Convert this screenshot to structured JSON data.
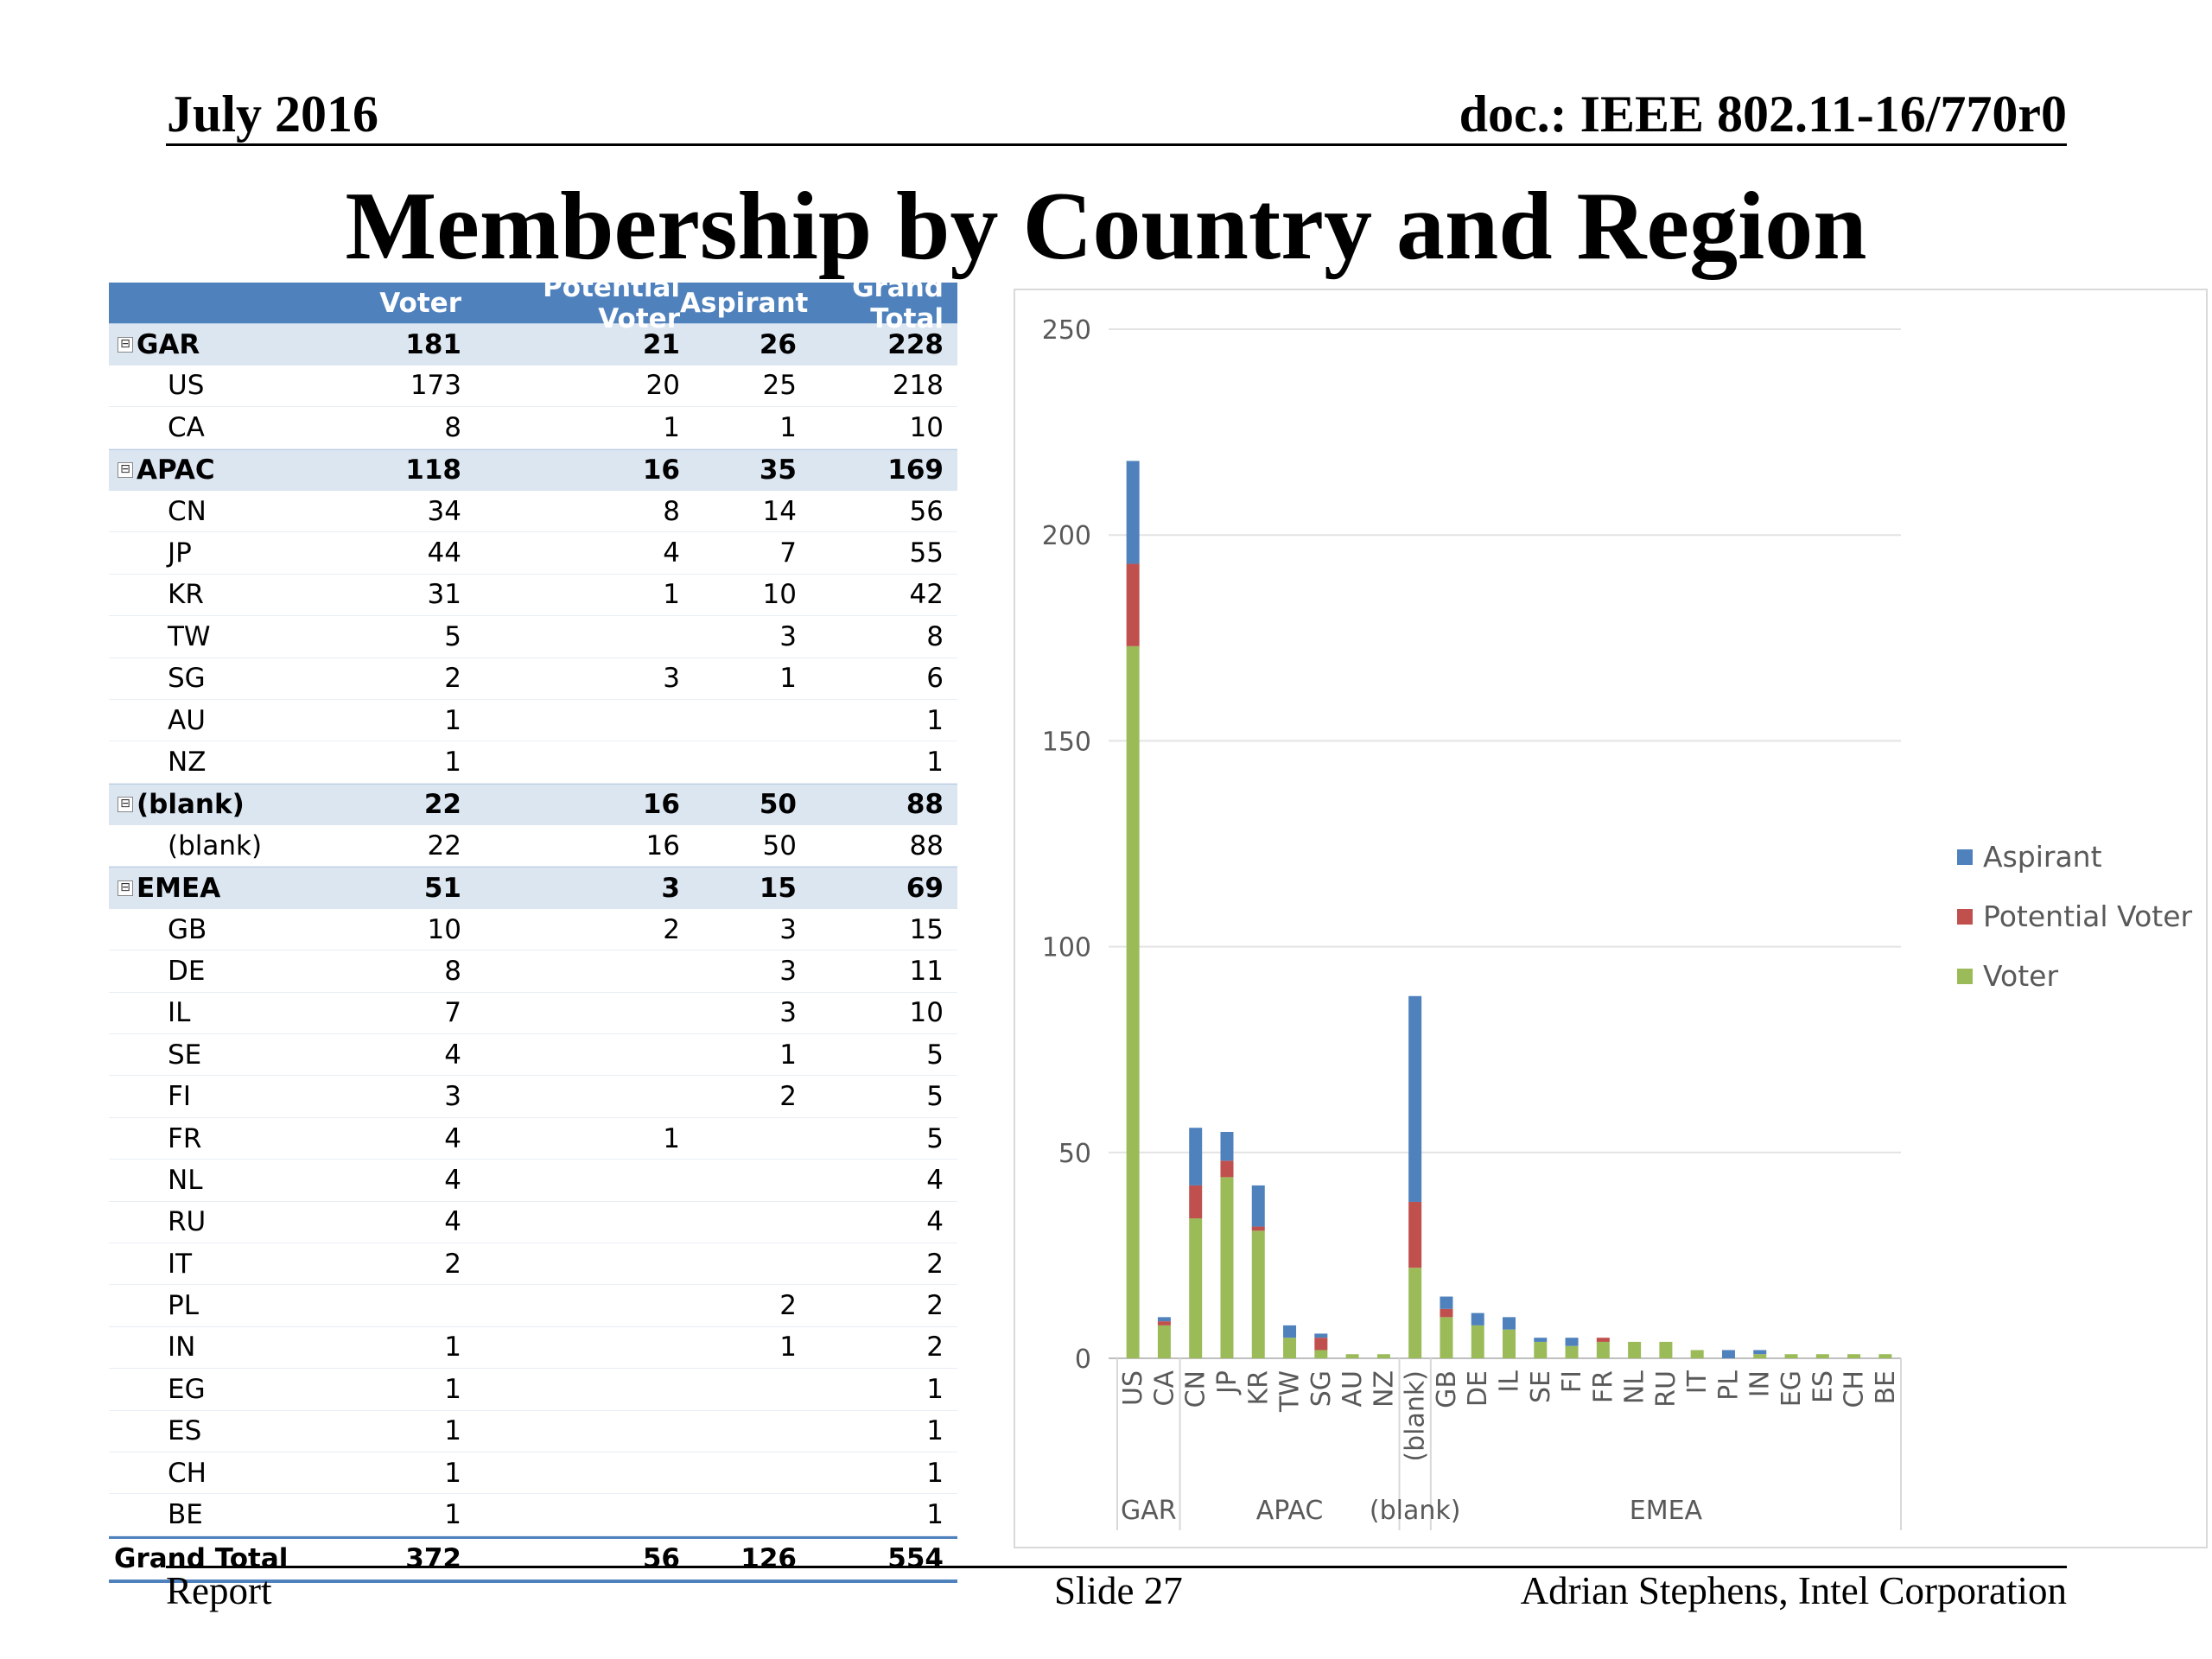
{
  "header": {
    "date": "July 2016",
    "doc": "doc.: IEEE 802.11-16/770r0"
  },
  "title": "Membership by Country and Region",
  "footer": {
    "left": "Report",
    "center": "Slide 27",
    "right": "Adrian Stephens, Intel Corporation"
  },
  "colors": {
    "voter": "#9bbb59",
    "potential_voter": "#c0504d",
    "aspirant": "#4f81bd",
    "table_header": "#4f81bd",
    "region_row": "#dce6f1"
  },
  "table": {
    "toggle_symbol": "⊟",
    "columns": [
      "",
      "Voter",
      "Potential Voter",
      "Aspirant",
      "Grand Total"
    ],
    "rows": [
      {
        "kind": "region",
        "label": "GAR",
        "voter": "181",
        "potential": "21",
        "aspirant": "26",
        "total": "228"
      },
      {
        "kind": "country",
        "label": "US",
        "voter": "173",
        "potential": "20",
        "aspirant": "25",
        "total": "218"
      },
      {
        "kind": "country",
        "label": "CA",
        "voter": "8",
        "potential": "1",
        "aspirant": "1",
        "total": "10"
      },
      {
        "kind": "region",
        "label": "APAC",
        "voter": "118",
        "potential": "16",
        "aspirant": "35",
        "total": "169"
      },
      {
        "kind": "country",
        "label": "CN",
        "voter": "34",
        "potential": "8",
        "aspirant": "14",
        "total": "56"
      },
      {
        "kind": "country",
        "label": "JP",
        "voter": "44",
        "potential": "4",
        "aspirant": "7",
        "total": "55"
      },
      {
        "kind": "country",
        "label": "KR",
        "voter": "31",
        "potential": "1",
        "aspirant": "10",
        "total": "42"
      },
      {
        "kind": "country",
        "label": "TW",
        "voter": "5",
        "potential": "",
        "aspirant": "3",
        "total": "8"
      },
      {
        "kind": "country",
        "label": "SG",
        "voter": "2",
        "potential": "3",
        "aspirant": "1",
        "total": "6"
      },
      {
        "kind": "country",
        "label": "AU",
        "voter": "1",
        "potential": "",
        "aspirant": "",
        "total": "1"
      },
      {
        "kind": "country",
        "label": "NZ",
        "voter": "1",
        "potential": "",
        "aspirant": "",
        "total": "1"
      },
      {
        "kind": "region",
        "label": "(blank)",
        "voter": "22",
        "potential": "16",
        "aspirant": "50",
        "total": "88"
      },
      {
        "kind": "country",
        "label": "(blank)",
        "voter": "22",
        "potential": "16",
        "aspirant": "50",
        "total": "88"
      },
      {
        "kind": "region",
        "label": "EMEA",
        "voter": "51",
        "potential": "3",
        "aspirant": "15",
        "total": "69"
      },
      {
        "kind": "country",
        "label": "GB",
        "voter": "10",
        "potential": "2",
        "aspirant": "3",
        "total": "15"
      },
      {
        "kind": "country",
        "label": "DE",
        "voter": "8",
        "potential": "",
        "aspirant": "3",
        "total": "11"
      },
      {
        "kind": "country",
        "label": "IL",
        "voter": "7",
        "potential": "",
        "aspirant": "3",
        "total": "10"
      },
      {
        "kind": "country",
        "label": "SE",
        "voter": "4",
        "potential": "",
        "aspirant": "1",
        "total": "5"
      },
      {
        "kind": "country",
        "label": "FI",
        "voter": "3",
        "potential": "",
        "aspirant": "2",
        "total": "5"
      },
      {
        "kind": "country",
        "label": "FR",
        "voter": "4",
        "potential": "1",
        "aspirant": "",
        "total": "5"
      },
      {
        "kind": "country",
        "label": "NL",
        "voter": "4",
        "potential": "",
        "aspirant": "",
        "total": "4"
      },
      {
        "kind": "country",
        "label": "RU",
        "voter": "4",
        "potential": "",
        "aspirant": "",
        "total": "4"
      },
      {
        "kind": "country",
        "label": "IT",
        "voter": "2",
        "potential": "",
        "aspirant": "",
        "total": "2"
      },
      {
        "kind": "country",
        "label": "PL",
        "voter": "",
        "potential": "",
        "aspirant": "2",
        "total": "2"
      },
      {
        "kind": "country",
        "label": "IN",
        "voter": "1",
        "potential": "",
        "aspirant": "1",
        "total": "2"
      },
      {
        "kind": "country",
        "label": "EG",
        "voter": "1",
        "potential": "",
        "aspirant": "",
        "total": "1"
      },
      {
        "kind": "country",
        "label": "ES",
        "voter": "1",
        "potential": "",
        "aspirant": "",
        "total": "1"
      },
      {
        "kind": "country",
        "label": "CH",
        "voter": "1",
        "potential": "",
        "aspirant": "",
        "total": "1"
      },
      {
        "kind": "country",
        "label": "BE",
        "voter": "1",
        "potential": "",
        "aspirant": "",
        "total": "1"
      },
      {
        "kind": "total",
        "label": "Grand Total",
        "voter": "372",
        "potential": "56",
        "aspirant": "126",
        "total": "554"
      }
    ]
  },
  "chart_data": {
    "type": "bar",
    "stacked": true,
    "title": "",
    "xlabel": "",
    "ylabel": "",
    "ylim": [
      0,
      250
    ],
    "yticks": [
      0,
      50,
      100,
      150,
      200,
      250
    ],
    "grid": true,
    "legend_position": "right",
    "categories": [
      "US",
      "CA",
      "CN",
      "JP",
      "KR",
      "TW",
      "SG",
      "AU",
      "NZ",
      "(blank)",
      "GB",
      "DE",
      "IL",
      "SE",
      "FI",
      "FR",
      "NL",
      "RU",
      "IT",
      "PL",
      "IN",
      "EG",
      "ES",
      "CH",
      "BE"
    ],
    "groups": [
      {
        "name": "GAR",
        "count": 2
      },
      {
        "name": "APAC",
        "count": 7
      },
      {
        "name": "(blank)",
        "count": 1
      },
      {
        "name": "EMEA",
        "count": 15
      }
    ],
    "series": [
      {
        "name": "Voter",
        "color": "#9bbb59",
        "values": [
          173,
          8,
          34,
          44,
          31,
          5,
          2,
          1,
          1,
          22,
          10,
          8,
          7,
          4,
          3,
          4,
          4,
          4,
          2,
          0,
          1,
          1,
          1,
          1,
          1
        ]
      },
      {
        "name": "Potential Voter",
        "color": "#c0504d",
        "values": [
          20,
          1,
          8,
          4,
          1,
          0,
          3,
          0,
          0,
          16,
          2,
          0,
          0,
          0,
          0,
          1,
          0,
          0,
          0,
          0,
          0,
          0,
          0,
          0,
          0
        ]
      },
      {
        "name": "Aspirant",
        "color": "#4f81bd",
        "values": [
          25,
          1,
          14,
          7,
          10,
          3,
          1,
          0,
          0,
          50,
          3,
          3,
          3,
          1,
          2,
          0,
          0,
          0,
          0,
          2,
          1,
          0,
          0,
          0,
          0
        ]
      }
    ],
    "legend_order": [
      "Aspirant",
      "Potential Voter",
      "Voter"
    ]
  }
}
